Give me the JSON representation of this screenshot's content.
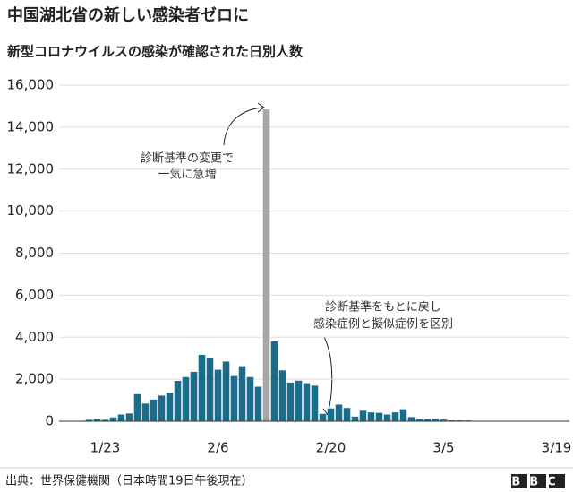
{
  "chart_data": {
    "type": "bar",
    "title": "中国湖北省の新しい感染者ゼロに",
    "subtitle": "新型コロナウイルスの感染が確認された日別人数",
    "source": "出典：世界保健機関（日本時間19日午後現在）",
    "logo": "BBC",
    "annotations": [
      [
        "診断基準の変更で",
        "一気に急増"
      ],
      [
        "診断基準をもとに戻し",
        "感染症例と擬似症例を区別"
      ]
    ],
    "categories": [
      null,
      null,
      "1/23",
      null,
      null,
      null,
      null,
      null,
      null,
      null,
      null,
      null,
      null,
      null,
      null,
      null,
      "2/6",
      null,
      null,
      null,
      null,
      null,
      null,
      null,
      null,
      null,
      null,
      null,
      null,
      null,
      "2/20",
      null,
      null,
      null,
      null,
      null,
      null,
      null,
      null,
      null,
      null,
      null,
      null,
      null,
      "3/5",
      null,
      null,
      null,
      null,
      null,
      null,
      null,
      null,
      null,
      null,
      null,
      null,
      null,
      "3/19"
    ],
    "values": [
      70,
      105,
      70,
      180,
      320,
      370,
      1290,
      840,
      1030,
      1220,
      1350,
      1920,
      2100,
      2350,
      3160,
      2990,
      2450,
      2840,
      2150,
      2620,
      2100,
      1640,
      14840,
      3800,
      2420,
      1840,
      1930,
      1810,
      1690,
      350,
      610,
      790,
      630,
      220,
      500,
      420,
      400,
      320,
      420,
      570,
      200,
      115,
      115,
      130,
      75,
      40,
      40,
      35,
      15,
      15,
      8,
      5,
      5,
      5,
      5,
      0,
      1,
      0,
      0
    ],
    "color": "#1b6b8a",
    "highlight_color": "#a6a6a6",
    "highlight": [
      22
    ],
    "ylim": [
      0,
      16000
    ],
    "yticks": [
      0,
      {
        "value": 2000,
        "label": "2,000"
      },
      {
        "value": 4000,
        "label": "4,000"
      },
      {
        "value": 6000,
        "label": "6,000"
      },
      {
        "value": 8000,
        "label": "8,000"
      },
      {
        "value": 10000,
        "label": "10,000"
      },
      {
        "value": 12000,
        "label": "12,000"
      },
      {
        "value": 14000,
        "label": "14,000"
      },
      {
        "value": 16000,
        "label": "16,000"
      }
    ],
    "grid": true
  }
}
